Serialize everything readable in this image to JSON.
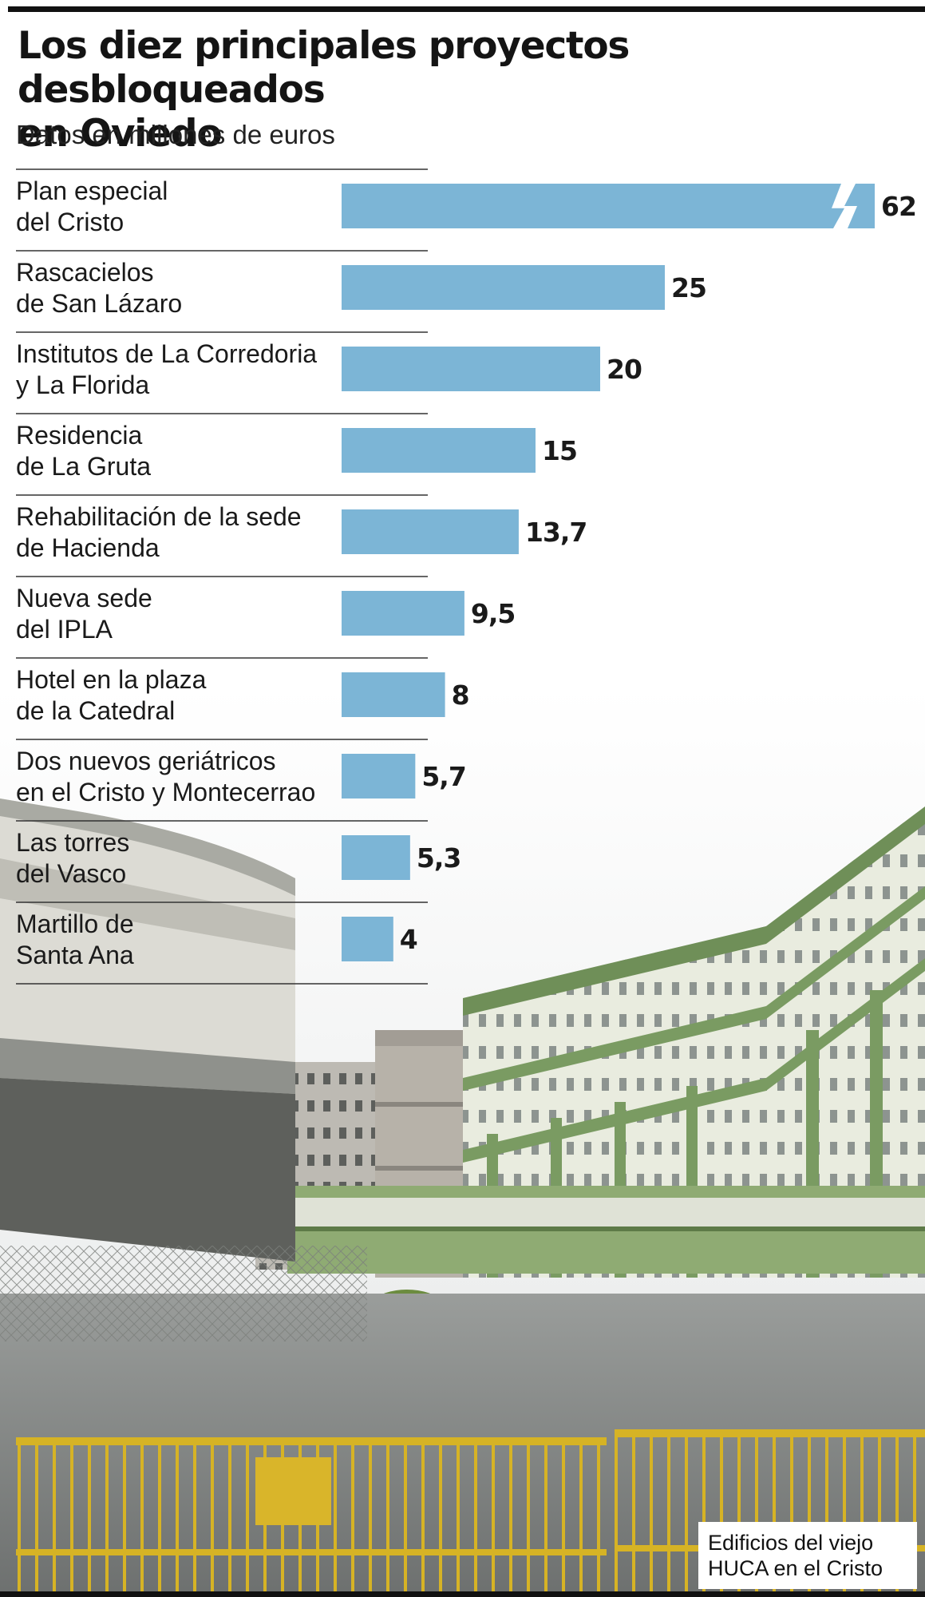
{
  "title_lines": [
    "Los diez principales proyectos desbloqueados",
    "en Oviedo"
  ],
  "subtitle": "Datos en millones de euros",
  "photo": {
    "caption_lines": [
      "Edificios del viejo",
      "HUCA en el Cristo"
    ]
  },
  "colors": {
    "bar": "#7cb5d6",
    "rule": "#333333",
    "building_green": "#7a9b62"
  },
  "chart_data": {
    "type": "bar",
    "orientation": "horizontal",
    "title": "Los diez principales proyectos desbloqueados en Oviedo",
    "subtitle": "Datos en millones de euros",
    "axis_break_on": "Plan especial del Cristo",
    "categories": [
      [
        "Plan especial",
        "del Cristo"
      ],
      [
        "Rascacielos",
        "de San Lázaro"
      ],
      [
        "Institutos de La Corredoria",
        "y La Florida"
      ],
      [
        "Residencia",
        "de La Gruta"
      ],
      [
        "Rehabilitación de la sede",
        "de Hacienda"
      ],
      [
        "Nueva sede",
        "del IPLA"
      ],
      [
        "Hotel en la plaza",
        "de la Catedral"
      ],
      [
        "Dos nuevos geriátricos",
        "en el Cristo y Montecerrao"
      ],
      [
        "Las torres",
        "del Vasco"
      ],
      [
        "Martillo de",
        "Santa Ana"
      ]
    ],
    "values": [
      62,
      25,
      20,
      15,
      13.7,
      9.5,
      8,
      5.7,
      5.3,
      4
    ],
    "value_labels": [
      "62",
      "25",
      "20",
      "15",
      "13,7",
      "9,5",
      "8",
      "5,7",
      "5,3",
      "4"
    ]
  }
}
